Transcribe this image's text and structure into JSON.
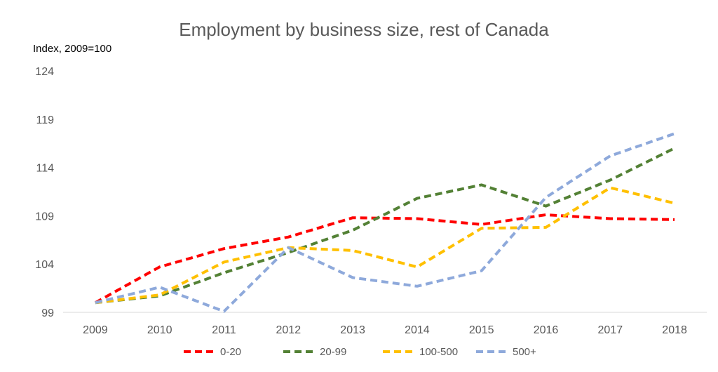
{
  "chart_data": {
    "type": "line",
    "title": "Employment by business size, rest of Canada",
    "xlabel": "",
    "ylabel": "Index, 2009=100",
    "categories": [
      "2009",
      "2010",
      "2011",
      "2012",
      "2013",
      "2014",
      "2015",
      "2016",
      "2017",
      "2018"
    ],
    "yticks": [
      "99",
      "104",
      "109",
      "114",
      "119",
      "124"
    ],
    "ylim": [
      99,
      124
    ],
    "grid": false,
    "legend_position": "bottom",
    "series": [
      {
        "name": "0-20",
        "color": "#ff0000",
        "values": [
          100,
          103.7,
          105.6,
          106.8,
          108.8,
          108.7,
          108.1,
          109.1,
          108.7,
          108.6
        ]
      },
      {
        "name": "20-99",
        "color": "#538135",
        "values": [
          100,
          100.7,
          103.1,
          105.2,
          107.5,
          110.8,
          112.2,
          110.0,
          112.7,
          116.0
        ]
      },
      {
        "name": "100-500",
        "color": "#ffc000",
        "values": [
          100,
          100.8,
          104.2,
          105.7,
          105.4,
          103.7,
          107.7,
          107.8,
          111.9,
          110.3
        ]
      },
      {
        "name": "500+",
        "color": "#8ea9db",
        "values": [
          100,
          101.6,
          99.1,
          105.7,
          102.6,
          101.7,
          103.3,
          110.9,
          115.2,
          117.5
        ]
      }
    ]
  }
}
